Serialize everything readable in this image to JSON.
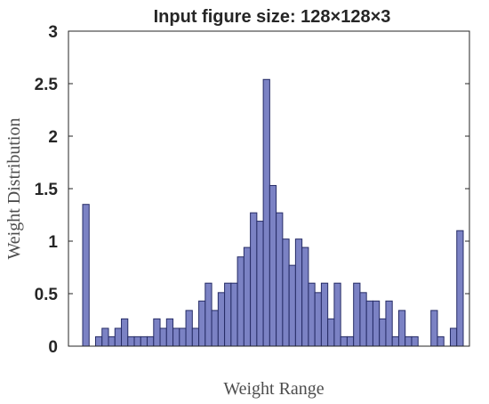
{
  "chart_data": {
    "type": "bar",
    "title": "Input figure size: 128×128×3",
    "xlabel": "Weight Range",
    "ylabel": "Weight Distribution",
    "ylim": [
      0,
      3
    ],
    "yticks": [
      "0",
      "0.5",
      "1",
      "1.5",
      "2",
      "2.5",
      "3"
    ],
    "bar_color": "#7b82c4",
    "bar_edge_color": "#262c66",
    "values": [
      1.35,
      0,
      0.09,
      0.17,
      0.09,
      0.17,
      0.26,
      0.09,
      0.09,
      0.09,
      0.09,
      0.26,
      0.17,
      0.26,
      0.17,
      0.17,
      0.34,
      0.17,
      0.43,
      0.6,
      0.34,
      0.51,
      0.6,
      0.6,
      0.85,
      0.94,
      1.27,
      1.19,
      2.54,
      1.53,
      1.27,
      1.02,
      0.77,
      1.02,
      0.94,
      0.6,
      0.51,
      0.6,
      0.26,
      0.6,
      0.09,
      0.09,
      0.6,
      0.51,
      0.43,
      0.43,
      0.26,
      0.43,
      0.09,
      0.34,
      0.09,
      0.09,
      0,
      0,
      0.34,
      0.09,
      0,
      0.17,
      1.1
    ]
  }
}
